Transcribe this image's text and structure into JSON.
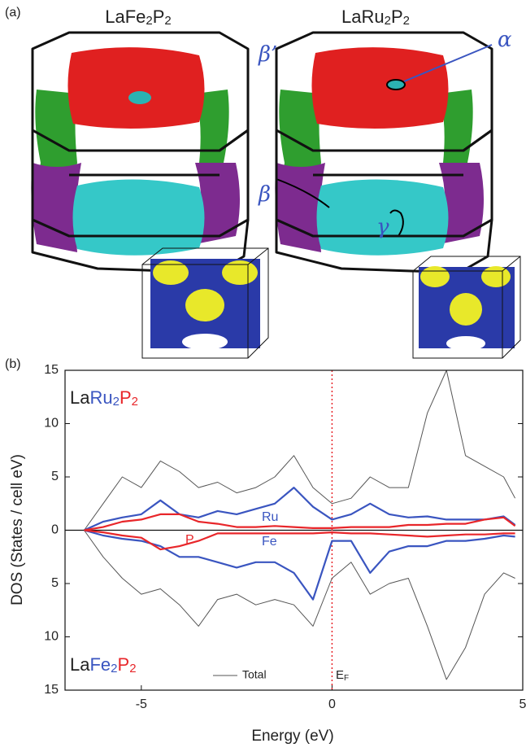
{
  "panel_a": {
    "label": "(a)",
    "left_title": [
      "La",
      "Fe",
      "2",
      "P",
      "2"
    ],
    "right_title": [
      "La",
      "Ru",
      "2",
      "P",
      "2"
    ],
    "annotations": [
      "β’",
      "α",
      "β",
      "γ"
    ]
  },
  "chart_data": {
    "type": "line",
    "panel_label": "(b)",
    "xlabel": "Energy (eV)",
    "ylabel": "DOS (States / cell eV)",
    "top_compound": [
      "La",
      "Ru",
      "2",
      "P",
      "2"
    ],
    "bottom_compound": [
      "La",
      "Fe",
      "2",
      "P",
      "2"
    ],
    "fermi_label": [
      "E",
      "F"
    ],
    "xlim": [
      -7,
      5
    ],
    "xticks": [
      -5,
      0,
      5
    ],
    "ylim": [
      -15,
      15
    ],
    "yticks": [
      15,
      10,
      5,
      0,
      {
        "value": -5,
        "label": "5"
      },
      {
        "value": -10,
        "label": "10"
      },
      {
        "value": -15,
        "label": "15"
      }
    ],
    "x": [
      -6.5,
      -6,
      -5.5,
      -5,
      -4.5,
      -4,
      -3.5,
      -3,
      -2.5,
      -2,
      -1.5,
      -1,
      -0.5,
      0,
      0.5,
      1,
      1.5,
      2,
      2.5,
      3,
      3.5,
      4,
      4.5,
      4.8
    ],
    "series": [
      {
        "name": "Total",
        "color": "#555555",
        "values": [
          0,
          2.5,
          5,
          4,
          6.5,
          5.5,
          4,
          4.5,
          3.5,
          4,
          5,
          7,
          4,
          2.5,
          3,
          5,
          4,
          4,
          11,
          15,
          7,
          6,
          5,
          3
        ]
      },
      {
        "name": "Ru",
        "color": "#3a55c0",
        "values": [
          0,
          0.8,
          1.2,
          1.5,
          2.8,
          1.5,
          1.2,
          1.8,
          1.5,
          2,
          2.5,
          4,
          2.2,
          1,
          1.5,
          2.5,
          1.5,
          1.2,
          1.3,
          1,
          1,
          1,
          1.3,
          0.5
        ]
      },
      {
        "color": "#e8262a",
        "values": [
          0,
          0.3,
          0.8,
          1,
          1.5,
          1.5,
          0.8,
          0.6,
          0.3,
          0.3,
          0.4,
          0.3,
          0.2,
          0.2,
          0.3,
          0.3,
          0.3,
          0.5,
          0.5,
          0.6,
          0.6,
          1,
          1.2,
          0.4
        ]
      },
      {
        "color": "#555555",
        "values": [
          0,
          -2.5,
          -4.5,
          -6,
          -5.5,
          -7,
          -9,
          -6.5,
          -6,
          -7,
          -6.5,
          -7,
          -9,
          -4.5,
          -3,
          -6,
          -5,
          -4.5,
          -9,
          -14,
          -11,
          -6,
          -4,
          -4.5
        ]
      },
      {
        "name": "Fe",
        "color": "#3a55c0",
        "values": [
          0,
          -0.5,
          -0.8,
          -1,
          -1.5,
          -2.5,
          -2.5,
          -3,
          -3.5,
          -3,
          -3,
          -4,
          -6.5,
          -1,
          -1,
          -4,
          -2,
          -1.5,
          -1.5,
          -1,
          -1,
          -0.8,
          -0.5,
          -0.6
        ]
      },
      {
        "name": "P",
        "color": "#e8262a",
        "values": [
          0,
          -0.2,
          -0.5,
          -0.7,
          -1.8,
          -1.5,
          -1,
          -0.3,
          -0.3,
          -0.3,
          -0.3,
          -0.3,
          -0.3,
          -0.2,
          -0.3,
          -0.3,
          -0.4,
          -0.5,
          -0.6,
          -0.5,
          -0.4,
          -0.4,
          -0.3,
          -0.3
        ]
      }
    ]
  }
}
